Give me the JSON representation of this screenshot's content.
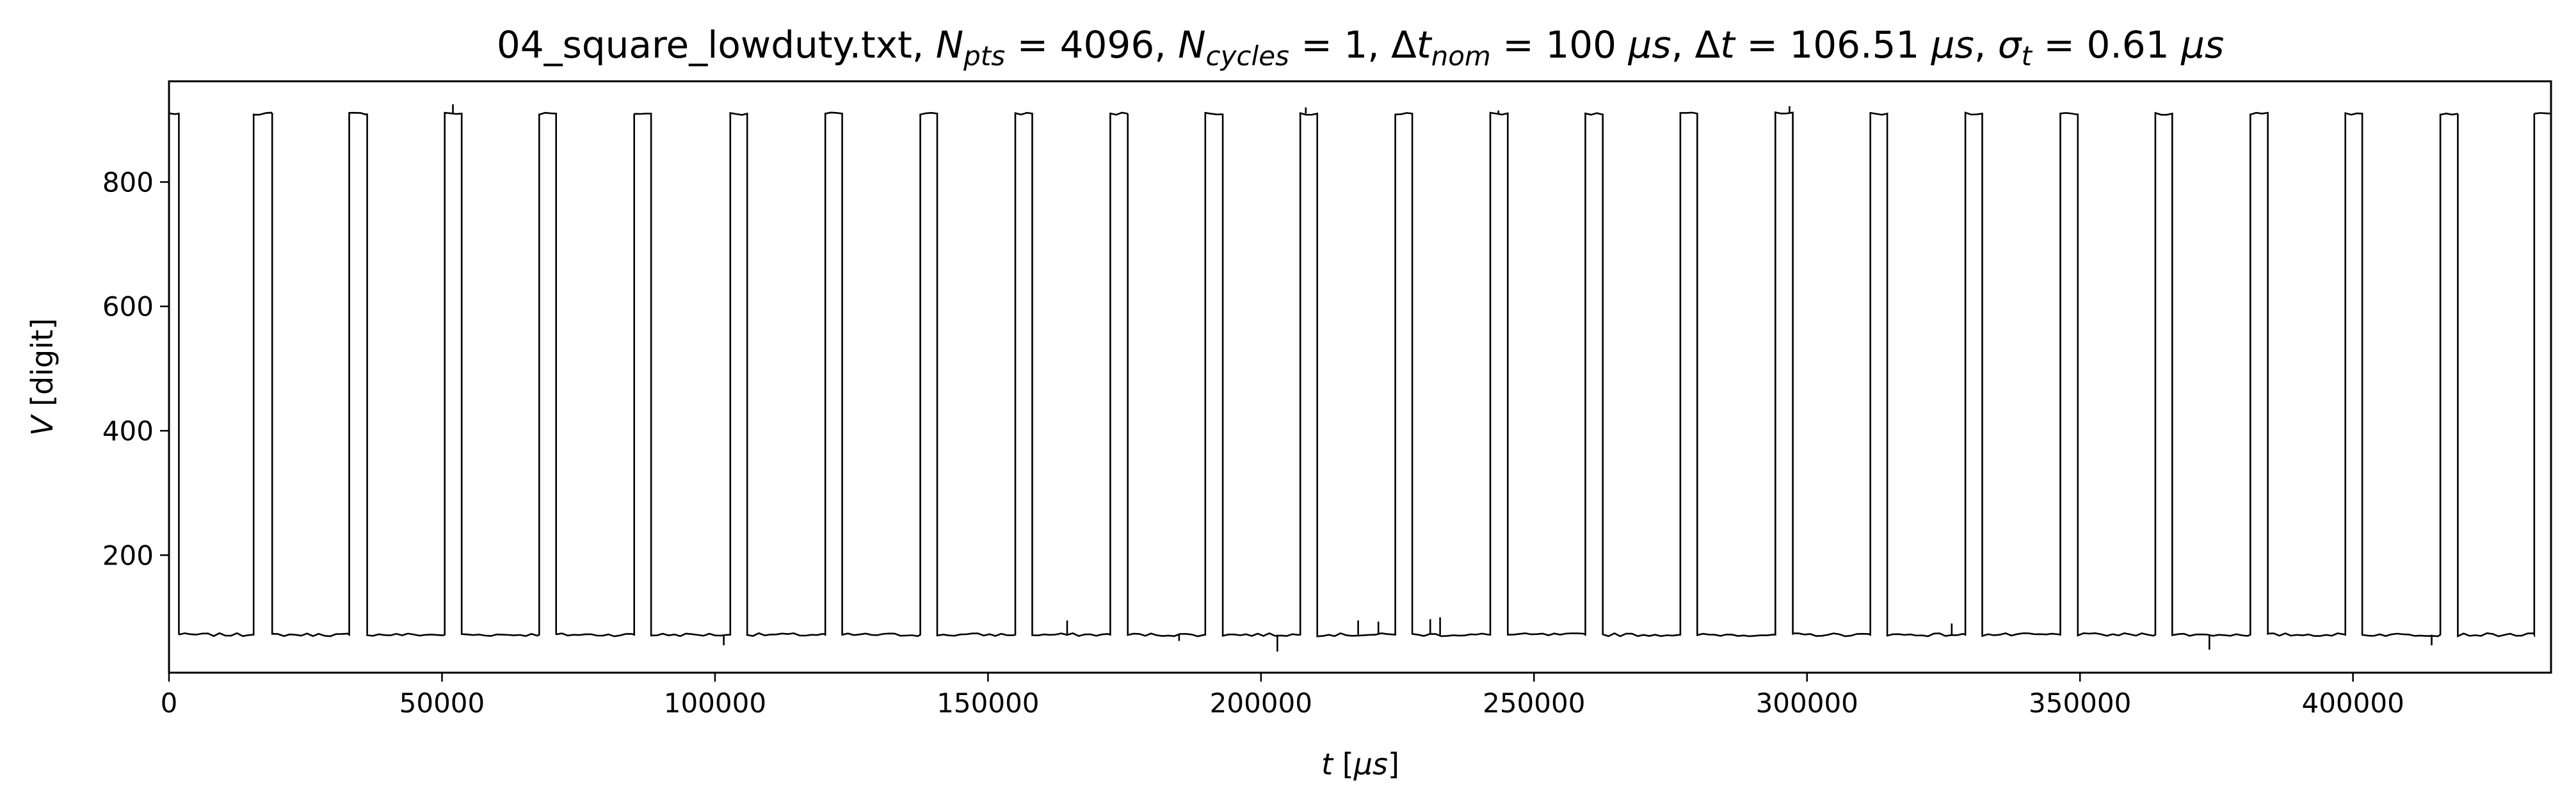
{
  "chart_data": {
    "type": "line",
    "title": {
      "file": "04_square_lowduty.txt, ",
      "npts_label": "N",
      "npts_sub": "pts",
      "npts_value": " = 4096, ",
      "ncyc_label": "N",
      "ncyc_sub": "cycles",
      "ncyc_value": " = 1, ",
      "dtnom_delta": "Δ",
      "dtnom_t": "t",
      "dtnom_sub": "nom",
      "dtnom_value": " = 100 ",
      "dtnom_unit": "μs",
      "dtnom_comma": ", ",
      "dt_delta": "Δ",
      "dt_t": "t",
      "dt_value": " = 106.51 ",
      "dt_unit": "μs",
      "dt_comma": ", ",
      "sigma": "σ",
      "sigma_sub": "t",
      "sigma_value": " = 0.61 ",
      "sigma_unit": "μs"
    },
    "xlabel": {
      "var": "t",
      "unit_open": " [",
      "unit": "μs",
      "unit_close": "]"
    },
    "ylabel": {
      "var": "V",
      "unit": " [digit]"
    },
    "xlim": [
      0,
      436270
    ],
    "ylim": [
      11,
      962
    ],
    "xticks": [
      {
        "value": 0,
        "label": "0"
      },
      {
        "value": 50000,
        "label": "50000"
      },
      {
        "value": 100000,
        "label": "100000"
      },
      {
        "value": 150000,
        "label": "150000"
      },
      {
        "value": 200000,
        "label": "200000"
      },
      {
        "value": 250000,
        "label": "250000"
      },
      {
        "value": 300000,
        "label": "300000"
      },
      {
        "value": 350000,
        "label": "350000"
      },
      {
        "value": 400000,
        "label": "400000"
      }
    ],
    "yticks": [
      {
        "value": 200,
        "label": "200"
      },
      {
        "value": 400,
        "label": "400"
      },
      {
        "value": 600,
        "label": "600"
      },
      {
        "value": 800,
        "label": "800"
      }
    ],
    "grid": false,
    "line_color": "#000000",
    "series": [
      {
        "high_level": 910,
        "low_level": 72,
        "pulses": [
          [
            0,
            1800
          ],
          [
            15500,
            18900
          ],
          [
            33000,
            36300
          ],
          [
            50500,
            53600
          ],
          [
            67800,
            70900
          ],
          [
            85200,
            88300
          ],
          [
            102800,
            105900
          ],
          [
            120200,
            123300
          ],
          [
            137600,
            140700
          ],
          [
            155000,
            158100
          ],
          [
            172400,
            175600
          ],
          [
            189800,
            193000
          ],
          [
            207200,
            210300
          ],
          [
            224600,
            227700
          ],
          [
            242000,
            245200
          ],
          [
            259400,
            262600
          ],
          [
            276800,
            279900
          ],
          [
            294200,
            297400
          ],
          [
            311600,
            314700
          ],
          [
            329000,
            332100
          ],
          [
            346400,
            349600
          ],
          [
            363800,
            366900
          ],
          [
            381200,
            384400
          ],
          [
            398600,
            401700
          ],
          [
            416000,
            419200
          ],
          [
            433200,
            436270
          ]
        ],
        "spikes": [
          [
            52000,
            925
          ],
          [
            101600,
            55
          ],
          [
            164500,
            95
          ],
          [
            185000,
            62
          ],
          [
            203000,
            45
          ],
          [
            208200,
            920
          ],
          [
            217800,
            95
          ],
          [
            221500,
            93
          ],
          [
            231000,
            97
          ],
          [
            232800,
            100
          ],
          [
            243500,
            915
          ],
          [
            296800,
            922
          ],
          [
            326500,
            90
          ],
          [
            373700,
            48
          ],
          [
            414400,
            55
          ]
        ]
      }
    ]
  }
}
